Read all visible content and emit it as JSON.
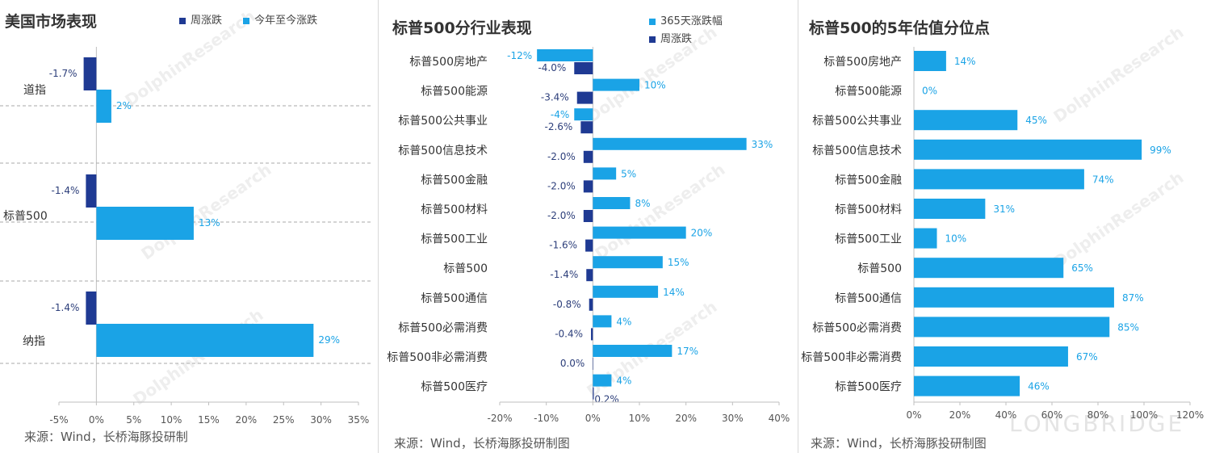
{
  "colors": {
    "weekly": "#1f3a93",
    "ytd": "#1aa3e6",
    "axis": "#bfbfbf",
    "label_weekly": "#2c3e7a",
    "label_ytd": "#1aa3e6"
  },
  "watermark": "DolphinResearch",
  "brand": "LONGBRIDGE",
  "chart_data": [
    {
      "type": "bar",
      "orientation": "horizontal",
      "title": "美国市场表现",
      "source": "来源：Wind，长桥海豚投研制",
      "categories": [
        "道指",
        "标普500",
        "纳指"
      ],
      "series": [
        {
          "name": "周涨跌",
          "values": [
            -1.7,
            -1.4,
            -1.4
          ],
          "labels": [
            "-1.7%",
            "-1.4%",
            "-1.4%"
          ]
        },
        {
          "name": "今年至今涨跌",
          "values": [
            2,
            13,
            29
          ],
          "labels": [
            "2%",
            "13%",
            "29%"
          ]
        }
      ],
      "xlim": [
        -5,
        35
      ],
      "xticks": [
        "-5%",
        "0%",
        "5%",
        "10%",
        "15%",
        "20%",
        "25%",
        "30%",
        "35%"
      ],
      "legend": "top"
    },
    {
      "type": "bar",
      "orientation": "horizontal",
      "title": "标普500分行业表现",
      "source": "来源：Wind，长桥海豚投研制图",
      "categories": [
        "标普500房地产",
        "标普500能源",
        "标普500公共事业",
        "标普500信息技术",
        "标普500金融",
        "标普500材料",
        "标普500工业",
        "标普500",
        "标普500通信",
        "标普500必需消费",
        "标普500非必需消费",
        "标普500医疗"
      ],
      "series": [
        {
          "name": "365天涨跌幅",
          "values": [
            -12,
            10,
            -4,
            33,
            5,
            8,
            20,
            15,
            14,
            4,
            17,
            4
          ],
          "labels": [
            "-12%",
            "10%",
            "-4%",
            "33%",
            "5%",
            "8%",
            "20%",
            "15%",
            "14%",
            "4%",
            "17%",
            "4%"
          ]
        },
        {
          "name": "周涨跌",
          "values": [
            -4.0,
            -3.4,
            -2.6,
            -2.0,
            -2.0,
            -2.0,
            -1.6,
            -1.4,
            -0.8,
            -0.4,
            0.0,
            0.2
          ],
          "labels": [
            "-4.0%",
            "-3.4%",
            "-2.6%",
            "-2.0%",
            "-2.0%",
            "-2.0%",
            "-1.6%",
            "-1.4%",
            "-0.8%",
            "-0.4%",
            "0.0%",
            "0.2%"
          ]
        }
      ],
      "xlim": [
        -20,
        40
      ],
      "xticks": [
        "-20%",
        "-10%",
        "0%",
        "10%",
        "20%",
        "30%",
        "40%"
      ],
      "legend": "top-right"
    },
    {
      "type": "bar",
      "orientation": "horizontal",
      "title": "标普500的5年估值分位点",
      "source": "来源：Wind，长桥海豚投研制图",
      "categories": [
        "标普500房地产",
        "标普500能源",
        "标普500公共事业",
        "标普500信息技术",
        "标普500金融",
        "标普500材料",
        "标普500工业",
        "标普500",
        "标普500通信",
        "标普500必需消费",
        "标普500非必需消费",
        "标普500医疗"
      ],
      "series": [
        {
          "values": [
            14,
            0,
            45,
            99,
            74,
            31,
            10,
            65,
            87,
            85,
            67,
            46
          ],
          "labels": [
            "14%",
            "0%",
            "45%",
            "99%",
            "74%",
            "31%",
            "10%",
            "65%",
            "87%",
            "85%",
            "67%",
            "46%"
          ]
        }
      ],
      "xlim": [
        0,
        120
      ],
      "xticks": [
        "0%",
        "20%",
        "40%",
        "60%",
        "80%",
        "100%",
        "120%"
      ]
    }
  ]
}
